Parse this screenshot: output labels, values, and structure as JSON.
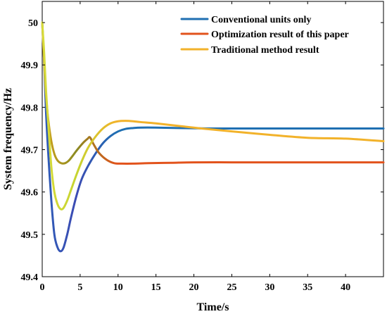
{
  "chart_data": {
    "type": "line",
    "title": "",
    "xlabel": "Time/s",
    "ylabel": "System frequency/Hz",
    "xlim": [
      0,
      45
    ],
    "ylim": [
      49.4,
      50.05
    ],
    "x_ticks": [
      0,
      5,
      10,
      15,
      20,
      25,
      30,
      35,
      40
    ],
    "y_ticks": [
      49.4,
      49.5,
      49.6,
      49.7,
      49.8,
      49.9,
      50
    ],
    "grid": false,
    "legend_position": "top-right",
    "series": [
      {
        "name": "Conventional units only",
        "color": "#1f6fb2",
        "x": [
          0,
          0.25,
          0.5,
          0.8,
          1.2,
          1.6,
          2.0,
          2.4,
          2.8,
          3.3,
          3.8,
          4.5,
          5.2,
          6.0,
          7.0,
          8.0,
          9.0,
          10.0,
          11.0,
          12.0,
          13.0,
          15.0,
          18.0,
          22.0,
          26.0,
          30.0,
          35.0,
          40.0,
          45.0
        ],
        "y": [
          50.0,
          49.91,
          49.79,
          49.69,
          49.58,
          49.5,
          49.47,
          49.46,
          49.468,
          49.5,
          49.54,
          49.59,
          49.63,
          49.66,
          49.69,
          49.715,
          49.732,
          49.743,
          49.749,
          49.751,
          49.752,
          49.752,
          49.751,
          49.75,
          49.75,
          49.75,
          49.75,
          49.75,
          49.75
        ],
        "gradient_colors": [
          "#2e5fb8",
          "#3c4bb3",
          "#1f6fb2"
        ]
      },
      {
        "name": "Optimization result of this paper",
        "color": "#e2531c",
        "x": [
          0,
          0.25,
          0.5,
          0.8,
          1.2,
          1.6,
          2.0,
          2.5,
          3.0,
          3.5,
          4.0,
          4.5,
          5.0,
          5.5,
          6.0,
          6.3,
          6.8,
          7.5,
          8.5,
          9.5,
          10.5,
          12.0,
          14.0,
          17.0,
          20.0,
          25.0,
          30.0,
          35.0,
          40.0,
          45.0
        ],
        "y": [
          50.0,
          49.91,
          49.83,
          49.77,
          49.72,
          49.69,
          49.675,
          49.668,
          49.668,
          49.674,
          49.685,
          49.697,
          49.708,
          49.718,
          49.726,
          49.729,
          49.712,
          49.692,
          49.676,
          49.668,
          49.667,
          49.667,
          49.668,
          49.669,
          49.67,
          49.67,
          49.67,
          49.67,
          49.67,
          49.67
        ],
        "gradient_colors": [
          "#d4a41a",
          "#8a8a22",
          "#e2531c"
        ]
      },
      {
        "name": "Traditional method result",
        "color": "#f2b22a",
        "x": [
          0,
          0.25,
          0.5,
          0.8,
          1.2,
          1.6,
          2.0,
          2.4,
          2.8,
          3.3,
          3.8,
          4.5,
          5.2,
          6.0,
          7.0,
          8.0,
          9.0,
          10.0,
          11.0,
          12.0,
          13.0,
          15.0,
          18.0,
          21.0,
          25.0,
          30.0,
          35.0,
          40.0,
          45.0
        ],
        "y": [
          50.0,
          49.93,
          49.84,
          49.76,
          49.66,
          49.6,
          49.572,
          49.56,
          49.562,
          49.58,
          49.605,
          49.64,
          49.672,
          49.703,
          49.73,
          49.75,
          49.762,
          49.767,
          49.768,
          49.767,
          49.765,
          49.762,
          49.756,
          49.75,
          49.743,
          49.735,
          49.728,
          49.726,
          49.72
        ],
        "gradient_colors": [
          "#d8dc3a",
          "#c6d431",
          "#f2b22a"
        ]
      }
    ]
  }
}
